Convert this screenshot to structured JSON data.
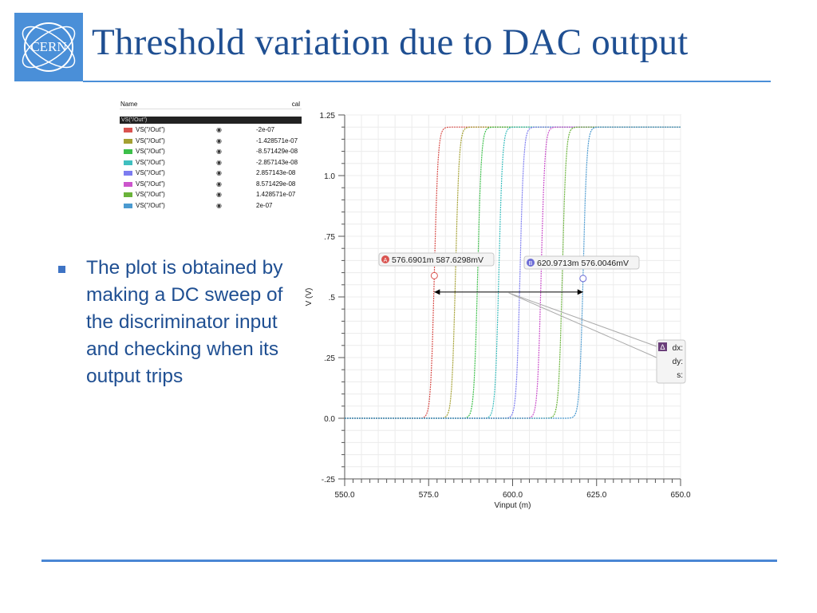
{
  "slide": {
    "title": "Threshold variation due to DAC output",
    "logo_text": "CERN",
    "bullet_text": "The plot is obtained by making a DC sweep of the discriminator input and checking when its output trips"
  },
  "legend": {
    "header_name": "Name",
    "header_cal": "cal",
    "selected_label": "VS(\"/Out\")",
    "rows": [
      {
        "name": "VS(\"/Out\")",
        "value": "-2e-07",
        "color": "#d9534f"
      },
      {
        "name": "VS(\"/Out\")",
        "value": "-1.428571e-07",
        "color": "#a4a032"
      },
      {
        "name": "VS(\"/Out\")",
        "value": "-8.571429e-08",
        "color": "#3cbf4a"
      },
      {
        "name": "VS(\"/Out\")",
        "value": "-2.857143e-08",
        "color": "#3fbfbf"
      },
      {
        "name": "VS(\"/Out\")",
        "value": "2.857143e-08",
        "color": "#7c7cf0"
      },
      {
        "name": "VS(\"/Out\")",
        "value": "8.571429e-08",
        "color": "#cc55cc"
      },
      {
        "name": "VS(\"/Out\")",
        "value": "1.428571e-07",
        "color": "#6ab33a"
      },
      {
        "name": "VS(\"/Out\")",
        "value": "2e-07",
        "color": "#4b9ad0"
      }
    ]
  },
  "chart_data": {
    "type": "line",
    "xlabel": "Vinput (m)",
    "ylabel": "V (V)",
    "xlim": [
      550,
      650
    ],
    "ylim": [
      -0.25,
      1.25
    ],
    "x_ticks": [
      "550.0",
      "575.0",
      "600.0",
      "625.0",
      "650.0"
    ],
    "y_ticks": [
      "1.25",
      "1.0",
      ".75",
      ".5",
      ".25",
      "0.0",
      "-.25"
    ],
    "grid": true,
    "series_high": 1.2,
    "series_low": 0.0,
    "series": [
      {
        "value": "-2e-07",
        "color": "#d9534f",
        "threshold": 576.7
      },
      {
        "value": "-1.428571e-07",
        "color": "#a4a032",
        "threshold": 583.0
      },
      {
        "value": "-8.571429e-08",
        "color": "#3cbf4a",
        "threshold": 589.6
      },
      {
        "value": "-2.857143e-08",
        "color": "#3fbfbf",
        "threshold": 595.9
      },
      {
        "value": "2.857143e-08",
        "color": "#7c7cf0",
        "threshold": 602.2
      },
      {
        "value": "8.571429e-08",
        "color": "#cc55cc",
        "threshold": 608.5
      },
      {
        "value": "1.428571e-07",
        "color": "#6ab33a",
        "threshold": 614.8
      },
      {
        "value": "2e-07",
        "color": "#4b9ad0",
        "threshold": 621.0
      }
    ],
    "markers": [
      {
        "id": "A",
        "label": "576.6901m 587.6298mV",
        "x": 576.6901,
        "y": 0.5876,
        "color": "#d9534f"
      },
      {
        "id": "B",
        "label": "620.9713m 576.0046mV",
        "x": 620.9713,
        "y": 0.576,
        "color": "#6b6bd6"
      }
    ],
    "delta_box": {
      "icon": "Δ",
      "lines": [
        "dx:",
        "dy:",
        "s:"
      ]
    }
  }
}
